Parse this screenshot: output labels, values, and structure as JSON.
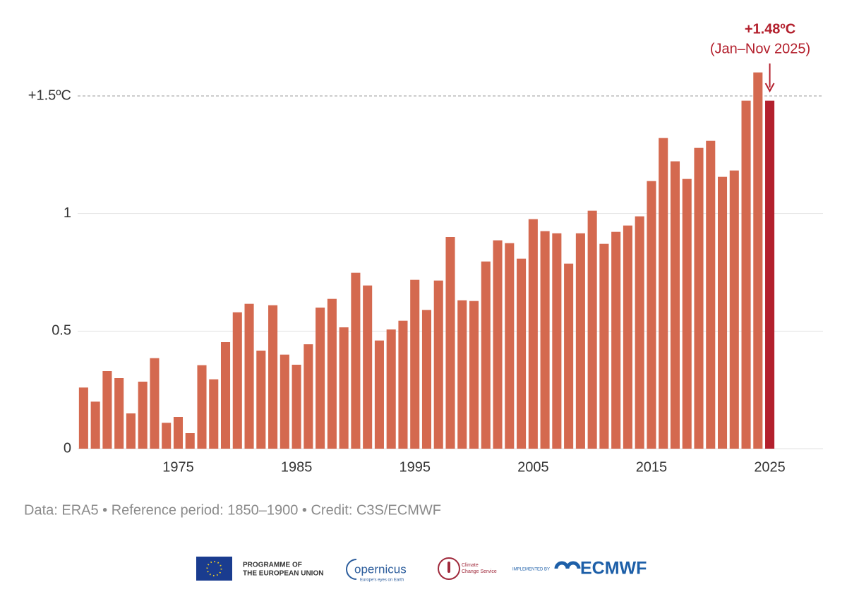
{
  "chart_data": {
    "type": "bar",
    "x": [
      1967,
      1968,
      1969,
      1970,
      1971,
      1972,
      1973,
      1974,
      1975,
      1976,
      1977,
      1978,
      1979,
      1980,
      1981,
      1982,
      1983,
      1984,
      1985,
      1986,
      1987,
      1988,
      1989,
      1990,
      1991,
      1992,
      1993,
      1994,
      1995,
      1996,
      1997,
      1998,
      1999,
      2000,
      2001,
      2002,
      2003,
      2004,
      2005,
      2006,
      2007,
      2008,
      2009,
      2010,
      2011,
      2012,
      2013,
      2014,
      2015,
      2016,
      2017,
      2018,
      2019,
      2020,
      2021,
      2022,
      2023,
      2024,
      2025
    ],
    "values": [
      0.26,
      0.2,
      0.33,
      0.3,
      0.15,
      0.285,
      0.385,
      0.11,
      0.135,
      0.066,
      0.355,
      0.295,
      0.453,
      0.58,
      0.616,
      0.417,
      0.61,
      0.4,
      0.357,
      0.444,
      0.6,
      0.637,
      0.516,
      0.748,
      0.694,
      0.46,
      0.507,
      0.544,
      0.718,
      0.59,
      0.715,
      0.9,
      0.631,
      0.628,
      0.796,
      0.886,
      0.874,
      0.808,
      0.976,
      0.925,
      0.916,
      0.787,
      0.916,
      1.012,
      0.871,
      0.922,
      0.949,
      0.988,
      1.138,
      1.321,
      1.222,
      1.147,
      1.279,
      1.309,
      1.156,
      1.183,
      1.48,
      1.6,
      1.48
    ],
    "color": "#d4694f",
    "xlim": [
      1966.5,
      2029.5
    ],
    "xticks": [
      1975,
      1985,
      1995,
      2005,
      2015,
      2025
    ],
    "ylim": [
      0,
      1.65
    ],
    "yticks": [
      0,
      0.5,
      1,
      {
        "value": 1.5,
        "label": "+1.5ºC"
      }
    ],
    "grid": true,
    "annotation": {
      "label": "+1.48ºC",
      "sublabel": "(Jan–Nov 2025)",
      "x": 2025,
      "color": "#b3202d"
    },
    "source": "Data: ERA5 • Reference period: 1850–1900 • Credit: C3S/ECMWF"
  },
  "logos": {
    "eu_line1": "PROGRAMME OF",
    "eu_line2": "THE EUROPEAN UNION",
    "copernicus": "opernicus",
    "copernicus_tagline": "Europe's eyes on Earth",
    "c3s_line1": "Climate",
    "c3s_line2": "Change Service",
    "implemented_by": "IMPLEMENTED BY",
    "ecmwf": "ECMWF"
  }
}
